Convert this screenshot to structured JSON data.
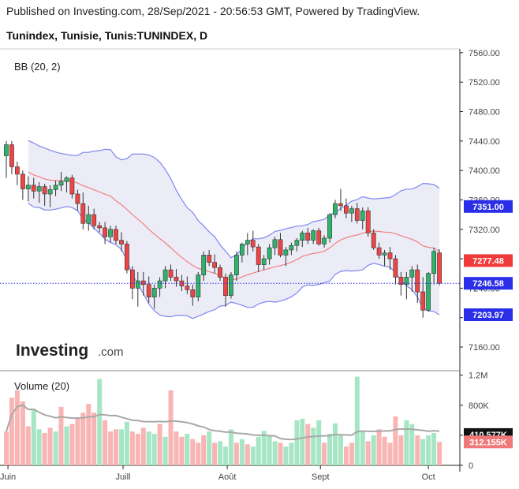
{
  "header": {
    "published": "Published on Investing.com, 28/Sep/2021 - 20:56:53 GMT, Powered by TradingView.",
    "symbol": "Tunindex, Tunisie, Tunis:TUNINDEX, D"
  },
  "logo": {
    "brand": "Investing",
    "suffix": ".com"
  },
  "chart_data": {
    "type": "candlestick",
    "indicator_label": "BB (20, 2)",
    "volume_label": "Volume (20)",
    "price_ticks": [
      "7560.00",
      "7520.00",
      "7480.00",
      "7440.00",
      "7400.00",
      "7360.00",
      "7320.00",
      "7280.00",
      "7240.00",
      "7200.00",
      "7160.00"
    ],
    "price_tick_values": [
      7560,
      7520,
      7480,
      7440,
      7400,
      7360,
      7320,
      7280,
      7240,
      7200,
      7160
    ],
    "price_range": [
      7130,
      7562
    ],
    "volume_ticks": [
      "1.2M",
      "800K",
      "400K",
      "0"
    ],
    "volume_tick_values": [
      1200000,
      800000,
      400000,
      0
    ],
    "volume_range": [
      0,
      1260000
    ],
    "x_ticks": [
      "Juin",
      "Juill",
      "Août",
      "Sept",
      "Oct"
    ],
    "x_tick_index": [
      0.3,
      21.3,
      40.3,
      57.3,
      77
    ],
    "num_slots": 80,
    "price_tags": [
      {
        "label": "7351.00",
        "value": 7351,
        "color": "#2a2ee8"
      },
      {
        "label": "7277.48",
        "value": 7277.48,
        "color": "#f03a3a"
      },
      {
        "label": "7246.58",
        "value": 7246.58,
        "color": "#2a2ee8"
      },
      {
        "label": "7203.97",
        "value": 7203.97,
        "color": "#2a2ee8"
      }
    ],
    "volume_tags": [
      {
        "label": "410.577K",
        "value": 410577,
        "color": "#111111"
      },
      {
        "label": "312.155K",
        "value": 312155,
        "color": "#f07878"
      }
    ],
    "last_price": 7246.58,
    "colors": {
      "up": "#2fb36b",
      "down": "#ef4444",
      "vol_up": "#a6e6c4",
      "vol_down": "#f9b4b4",
      "band": "#7f87f0",
      "band_fill": "#ececf7",
      "basis": "#f08080",
      "vol_ma": "#a8a8a8",
      "last_line": "#2a2ee8"
    },
    "ohlc": [
      [
        7420,
        7440,
        7390,
        7435
      ],
      [
        7435,
        7440,
        7395,
        7405
      ],
      [
        7405,
        7412,
        7380,
        7395
      ],
      [
        7395,
        7400,
        7360,
        7375
      ],
      [
        7375,
        7392,
        7358,
        7380
      ],
      [
        7380,
        7390,
        7362,
        7372
      ],
      [
        7372,
        7384,
        7356,
        7378
      ],
      [
        7378,
        7382,
        7352,
        7368
      ],
      [
        7368,
        7380,
        7350,
        7374
      ],
      [
        7374,
        7386,
        7365,
        7380
      ],
      [
        7380,
        7398,
        7372,
        7385
      ],
      [
        7385,
        7392,
        7370,
        7390
      ],
      [
        7390,
        7394,
        7362,
        7368
      ],
      [
        7368,
        7374,
        7345,
        7355
      ],
      [
        7355,
        7370,
        7320,
        7328
      ],
      [
        7328,
        7352,
        7318,
        7340
      ],
      [
        7340,
        7348,
        7320,
        7325
      ],
      [
        7325,
        7330,
        7316,
        7322
      ],
      [
        7322,
        7330,
        7300,
        7310
      ],
      [
        7310,
        7325,
        7302,
        7320
      ],
      [
        7320,
        7325,
        7300,
        7305
      ],
      [
        7305,
        7316,
        7290,
        7300
      ],
      [
        7300,
        7304,
        7260,
        7265
      ],
      [
        7265,
        7270,
        7225,
        7240
      ],
      [
        7240,
        7262,
        7215,
        7250
      ],
      [
        7250,
        7262,
        7230,
        7245
      ],
      [
        7245,
        7256,
        7220,
        7228
      ],
      [
        7228,
        7245,
        7212,
        7240
      ],
      [
        7240,
        7255,
        7228,
        7250
      ],
      [
        7250,
        7270,
        7240,
        7265
      ],
      [
        7265,
        7272,
        7250,
        7255
      ],
      [
        7255,
        7266,
        7242,
        7250
      ],
      [
        7250,
        7258,
        7236,
        7243
      ],
      [
        7243,
        7256,
        7232,
        7238
      ],
      [
        7238,
        7245,
        7216,
        7228
      ],
      [
        7228,
        7262,
        7222,
        7258
      ],
      [
        7258,
        7290,
        7250,
        7285
      ],
      [
        7285,
        7292,
        7270,
        7275
      ],
      [
        7275,
        7286,
        7260,
        7268
      ],
      [
        7268,
        7272,
        7250,
        7255
      ],
      [
        7255,
        7260,
        7215,
        7230
      ],
      [
        7230,
        7262,
        7226,
        7258
      ],
      [
        7258,
        7290,
        7250,
        7285
      ],
      [
        7285,
        7302,
        7275,
        7300
      ],
      [
        7300,
        7315,
        7285,
        7305
      ],
      [
        7305,
        7318,
        7290,
        7296
      ],
      [
        7296,
        7300,
        7262,
        7272
      ],
      [
        7272,
        7285,
        7265,
        7280
      ],
      [
        7280,
        7300,
        7272,
        7295
      ],
      [
        7295,
        7310,
        7285,
        7306
      ],
      [
        7306,
        7315,
        7282,
        7285
      ],
      [
        7285,
        7296,
        7270,
        7292
      ],
      [
        7292,
        7302,
        7285,
        7298
      ],
      [
        7298,
        7308,
        7290,
        7305
      ],
      [
        7305,
        7318,
        7296,
        7315
      ],
      [
        7315,
        7322,
        7300,
        7305
      ],
      [
        7305,
        7320,
        7300,
        7318
      ],
      [
        7318,
        7322,
        7298,
        7300
      ],
      [
        7300,
        7312,
        7295,
        7308
      ],
      [
        7308,
        7342,
        7302,
        7340
      ],
      [
        7340,
        7360,
        7335,
        7355
      ],
      [
        7355,
        7375,
        7345,
        7352
      ],
      [
        7352,
        7362,
        7335,
        7342
      ],
      [
        7342,
        7352,
        7330,
        7348
      ],
      [
        7348,
        7356,
        7328,
        7332
      ],
      [
        7332,
        7350,
        7320,
        7345
      ],
      [
        7345,
        7350,
        7310,
        7315
      ],
      [
        7315,
        7320,
        7292,
        7295
      ],
      [
        7295,
        7302,
        7280,
        7285
      ],
      [
        7285,
        7292,
        7270,
        7288
      ],
      [
        7288,
        7296,
        7265,
        7280
      ],
      [
        7280,
        7285,
        7245,
        7255
      ],
      [
        7255,
        7262,
        7230,
        7245
      ],
      [
        7245,
        7262,
        7225,
        7255
      ],
      [
        7255,
        7270,
        7235,
        7265
      ],
      [
        7265,
        7272,
        7220,
        7235
      ],
      [
        7235,
        7255,
        7200,
        7210
      ],
      [
        7210,
        7262,
        7208,
        7260
      ],
      [
        7260,
        7295,
        7245,
        7290
      ],
      [
        7288,
        7293,
        7244,
        7246.58
      ]
    ],
    "volume": [
      [
        450000,
        0
      ],
      [
        900000,
        0
      ],
      [
        1000000,
        0
      ],
      [
        850000,
        0
      ],
      [
        520000,
        0
      ],
      [
        750000,
        1
      ],
      [
        480000,
        1
      ],
      [
        430000,
        0
      ],
      [
        500000,
        0
      ],
      [
        450000,
        1
      ],
      [
        780000,
        0
      ],
      [
        520000,
        1
      ],
      [
        550000,
        0
      ],
      [
        620000,
        0
      ],
      [
        700000,
        0
      ],
      [
        820000,
        0
      ],
      [
        700000,
        0
      ],
      [
        1150000,
        1
      ],
      [
        600000,
        0
      ],
      [
        450000,
        0
      ],
      [
        480000,
        0
      ],
      [
        480000,
        1
      ],
      [
        580000,
        1
      ],
      [
        450000,
        0
      ],
      [
        420000,
        0
      ],
      [
        500000,
        0
      ],
      [
        450000,
        1
      ],
      [
        420000,
        1
      ],
      [
        550000,
        0
      ],
      [
        380000,
        1
      ],
      [
        1000000,
        0
      ],
      [
        450000,
        0
      ],
      [
        380000,
        0
      ],
      [
        420000,
        1
      ],
      [
        350000,
        0
      ],
      [
        300000,
        0
      ],
      [
        400000,
        0
      ],
      [
        450000,
        1
      ],
      [
        300000,
        0
      ],
      [
        320000,
        1
      ],
      [
        250000,
        1
      ],
      [
        480000,
        1
      ],
      [
        300000,
        0
      ],
      [
        350000,
        1
      ],
      [
        280000,
        0
      ],
      [
        250000,
        1
      ],
      [
        380000,
        1
      ],
      [
        460000,
        1
      ],
      [
        400000,
        1
      ],
      [
        320000,
        1
      ],
      [
        300000,
        0
      ],
      [
        250000,
        1
      ],
      [
        300000,
        1
      ],
      [
        600000,
        1
      ],
      [
        620000,
        1
      ],
      [
        550000,
        0
      ],
      [
        500000,
        1
      ],
      [
        600000,
        1
      ],
      [
        300000,
        0
      ],
      [
        420000,
        1
      ],
      [
        560000,
        1
      ],
      [
        400000,
        1
      ],
      [
        250000,
        0
      ],
      [
        300000,
        0
      ],
      [
        1180000,
        1
      ],
      [
        450000,
        1
      ],
      [
        320000,
        0
      ],
      [
        400000,
        1
      ],
      [
        480000,
        0
      ],
      [
        380000,
        0
      ],
      [
        300000,
        0
      ],
      [
        650000,
        0
      ],
      [
        400000,
        0
      ],
      [
        600000,
        1
      ],
      [
        550000,
        1
      ],
      [
        400000,
        0
      ],
      [
        350000,
        1
      ],
      [
        400000,
        1
      ],
      [
        430000,
        1
      ],
      [
        312155,
        0
      ]
    ]
  }
}
